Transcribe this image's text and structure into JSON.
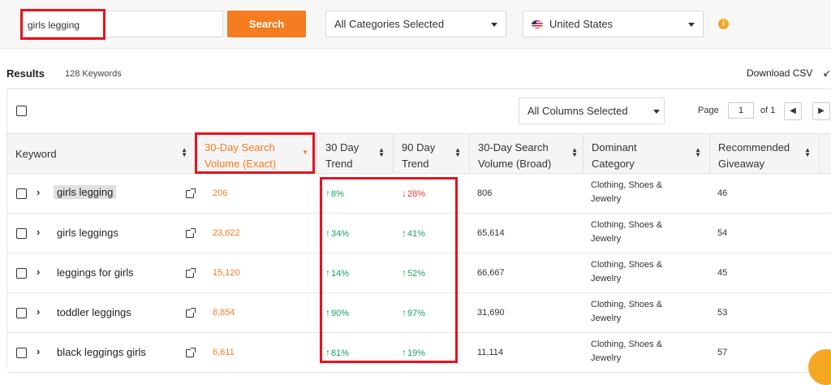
{
  "search": {
    "value": "girls legging",
    "button_label": "Search"
  },
  "filters": {
    "category_label": "All Categories Selected",
    "country_label": "United States",
    "info_glyph": "i"
  },
  "results": {
    "title": "Results",
    "count": "128 Keywords",
    "download_label": "Download CSV"
  },
  "toolbar": {
    "columns_label": "All Columns Selected",
    "page_label": "Page",
    "page_value": "1",
    "of_label": "of 1",
    "prev_glyph": "◀",
    "next_glyph": "▶"
  },
  "columns": [
    {
      "line1": "Keyword",
      "line2": ""
    },
    {
      "line1": "30-Day Search",
      "line2": "Volume (Exact)"
    },
    {
      "line1": "30 Day",
      "line2": "Trend"
    },
    {
      "line1": "90 Day",
      "line2": "Trend"
    },
    {
      "line1": "30-Day Search",
      "line2": "Volume (Broad)"
    },
    {
      "line1": "Dominant",
      "line2": "Category"
    },
    {
      "line1": "Recommended",
      "line2": "Giveaway"
    }
  ],
  "rows": [
    {
      "keyword": "girls legging",
      "exact": "206",
      "trend30_dir": "up",
      "trend30": "8%",
      "trend90_dir": "down",
      "trend90": "28%",
      "broad": "806",
      "cat1": "Clothing, Shoes &",
      "cat2": "Jewelry",
      "giveaway": "46"
    },
    {
      "keyword": "girls leggings",
      "exact": "23,622",
      "trend30_dir": "up",
      "trend30": "34%",
      "trend90_dir": "up",
      "trend90": "41%",
      "broad": "65,614",
      "cat1": "Clothing, Shoes &",
      "cat2": "Jewelry",
      "giveaway": "54"
    },
    {
      "keyword": "leggings for girls",
      "exact": "15,120",
      "trend30_dir": "up",
      "trend30": "14%",
      "trend90_dir": "up",
      "trend90": "52%",
      "broad": "66,667",
      "cat1": "Clothing, Shoes &",
      "cat2": "Jewelry",
      "giveaway": "45"
    },
    {
      "keyword": "toddler leggings",
      "exact": "8,854",
      "trend30_dir": "up",
      "trend30": "90%",
      "trend90_dir": "up",
      "trend90": "97%",
      "broad": "31,690",
      "cat1": "Clothing, Shoes &",
      "cat2": "Jewelry",
      "giveaway": "53"
    },
    {
      "keyword": "black leggings girls",
      "exact": "6,611",
      "trend30_dir": "up",
      "trend30": "81%",
      "trend90_dir": "up",
      "trend90": "19%",
      "broad": "11,114",
      "cat1": "Clothing, Shoes &",
      "cat2": "Jewelry",
      "giveaway": "57"
    }
  ],
  "colors": {
    "accent": "#f57c21",
    "up": "#1aa35c",
    "down": "#e53935",
    "highlight": "#e8111d"
  },
  "icons": {
    "arrow_up": "↑",
    "arrow_down": "↓",
    "expand": "chevron-right-icon",
    "external": "external-link-icon"
  }
}
